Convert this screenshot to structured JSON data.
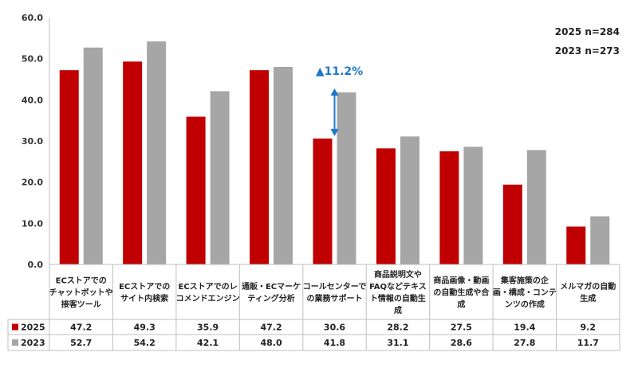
{
  "chart_data": {
    "type": "bar",
    "categories": [
      [
        "ECストアでの",
        "チャットボットや",
        "接客ツール"
      ],
      [
        "ECストアでの",
        "サイト内検索"
      ],
      [
        "ECストアでのレ",
        "コメンドエンジン"
      ],
      [
        "通販・ECマーケ",
        "ティング分析"
      ],
      [
        "コールセンターで",
        "の業務サポート"
      ],
      [
        "商品説明文や",
        "FAQなどテキス",
        "ト情報の自動生",
        "成"
      ],
      [
        "商品画像・動画",
        "の自動生成や合",
        "成"
      ],
      [
        "集客施策の企",
        "画・構成・コンテ",
        "ンツの作成"
      ],
      [
        "メルマガの自動",
        "生成"
      ]
    ],
    "series": [
      {
        "name": "2025",
        "color": "#c00000",
        "values": [
          47.2,
          49.3,
          35.9,
          47.2,
          30.6,
          28.2,
          27.5,
          19.4,
          9.2
        ]
      },
      {
        "name": "2023",
        "color": "#a6a6a6",
        "values": [
          52.7,
          54.2,
          42.1,
          48.0,
          41.8,
          31.1,
          28.6,
          27.8,
          11.7
        ]
      }
    ],
    "value_labels": [
      [
        "47.2",
        "49.3",
        "35.9",
        "47.2",
        "30.6",
        "28.2",
        "27.5",
        "19.4",
        "9.2"
      ],
      [
        "52.7",
        "54.2",
        "42.1",
        "48.0",
        "41.8",
        "31.1",
        "28.6",
        "27.8",
        "11.7"
      ]
    ],
    "ylim": [
      0,
      60
    ],
    "yticks": [
      "0.0",
      "10.0",
      "20.0",
      "30.0",
      "40.0",
      "50.0",
      "60.0"
    ],
    "grid": false,
    "sample_notes": [
      "2025 n=284",
      "2023 n=273"
    ],
    "annotation": {
      "text": "▲11.2%",
      "category_index": 4,
      "color": "#1f78c8"
    }
  }
}
